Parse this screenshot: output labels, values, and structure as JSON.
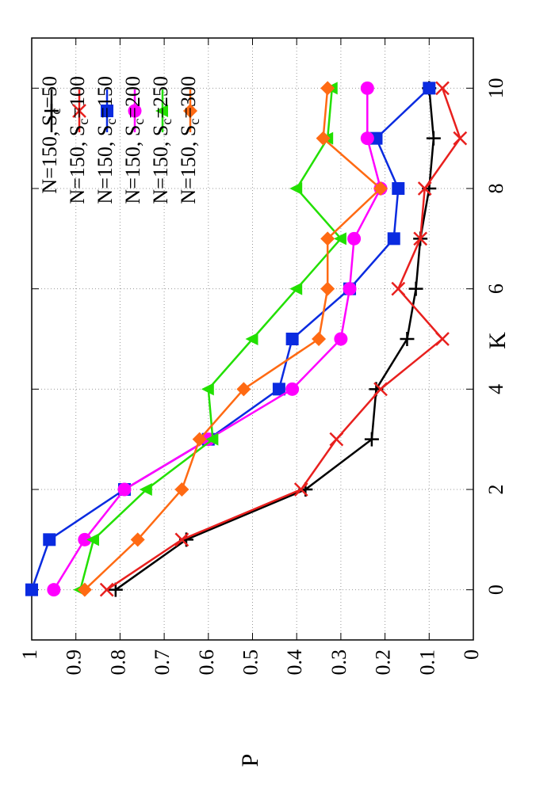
{
  "chart_data": {
    "type": "line",
    "xlabel": "K",
    "ylabel": "P",
    "xlim": [
      -1,
      11
    ],
    "xticks": [
      0,
      2,
      4,
      6,
      8,
      10
    ],
    "ylim": [
      0,
      1
    ],
    "yticks": [
      0,
      0.1,
      0.2,
      0.3,
      0.4,
      0.5,
      0.6,
      0.7,
      0.8,
      0.9,
      1
    ],
    "grid": true,
    "legend": "top-right",
    "x": [
      0,
      1,
      2,
      3,
      4,
      5,
      6,
      7,
      8,
      9,
      10
    ],
    "series": [
      {
        "name": "N=150, Sc=50",
        "color": "#000000",
        "marker": "plus",
        "values": [
          0.81,
          0.65,
          0.38,
          0.23,
          0.22,
          0.15,
          0.13,
          0.12,
          0.1,
          0.09,
          0.1
        ]
      },
      {
        "name": "N=150, Sc=100",
        "color": "#e8201e",
        "marker": "cross",
        "values": [
          0.83,
          0.66,
          0.39,
          0.31,
          0.21,
          0.07,
          0.17,
          0.12,
          0.11,
          0.03,
          0.07
        ]
      },
      {
        "name": "N=150, Sc=150",
        "color": "#0a2be0",
        "marker": "square",
        "values": [
          1.0,
          0.96,
          0.79,
          0.6,
          0.44,
          0.41,
          0.28,
          0.18,
          0.17,
          0.22,
          0.1
        ]
      },
      {
        "name": "N=150, Sc=200",
        "color": "#ff00ff",
        "marker": "circle",
        "values": [
          0.95,
          0.88,
          0.79,
          0.6,
          0.41,
          0.3,
          0.28,
          0.27,
          0.21,
          0.24,
          0.24
        ]
      },
      {
        "name": "N=150, Sc=250",
        "color": "#22e000",
        "marker": "triangle",
        "values": [
          0.89,
          0.86,
          0.74,
          0.59,
          0.6,
          0.5,
          0.4,
          0.3,
          0.4,
          0.33,
          0.32
        ]
      },
      {
        "name": "N=150, Sc=300",
        "color": "#ff6a13",
        "marker": "diamond",
        "values": [
          0.88,
          0.76,
          0.66,
          0.62,
          0.52,
          0.35,
          0.33,
          0.33,
          0.21,
          0.34,
          0.33
        ]
      }
    ]
  }
}
